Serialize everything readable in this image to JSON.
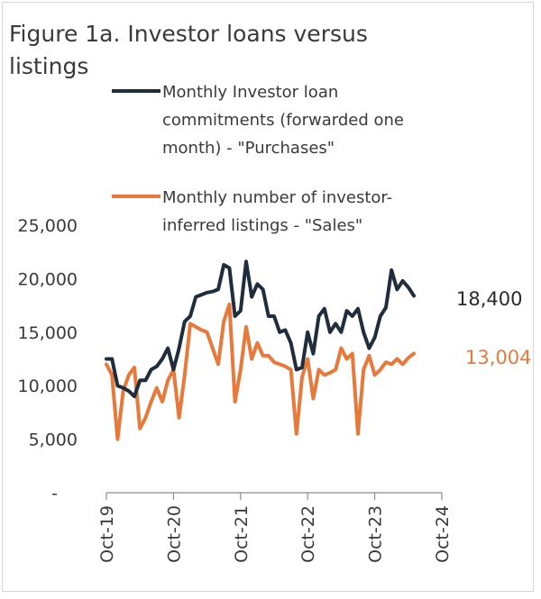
{
  "chart_data": {
    "type": "line",
    "title": "Figure 1a. Investor loans versus listings",
    "title_lines": [
      "Figure 1a. Investor loans versus",
      "listings"
    ],
    "xlabel": "",
    "ylabel": "",
    "x_tick_labels": [
      "Oct-19",
      "Oct-20",
      "Oct-21",
      "Oct-22",
      "Oct-23",
      "Oct-24"
    ],
    "y_tick_labels": [
      "25,000",
      "20,000",
      "15,000",
      "10,000",
      "5,000",
      "-"
    ],
    "ylim": [
      0,
      25000
    ],
    "grid": false,
    "legend": "top",
    "series": [
      {
        "name": "Monthly Investor loan commitments (forwarded one month) - \"Purchases\"",
        "legend_lines": [
          "Monthly Investor loan",
          "commitments (forwarded one",
          "month) - \"Purchases\""
        ],
        "color": "#1f2d3d",
        "end_label": "18,400",
        "points": [
          [
            "2019-10",
            12500
          ],
          [
            "2019-11",
            12500
          ],
          [
            "2019-12",
            10000
          ],
          [
            "2020-01",
            9800
          ],
          [
            "2020-02",
            9500
          ],
          [
            "2020-03",
            9000
          ],
          [
            "2020-04",
            10500
          ],
          [
            "2020-05",
            10500
          ],
          [
            "2020-06",
            11500
          ],
          [
            "2020-07",
            11800
          ],
          [
            "2020-08",
            12500
          ],
          [
            "2020-09",
            13500
          ],
          [
            "2020-10",
            11500
          ],
          [
            "2020-11",
            13500
          ],
          [
            "2020-12",
            16000
          ],
          [
            "2021-01",
            16500
          ],
          [
            "2021-02",
            18300
          ],
          [
            "2021-03",
            18500
          ],
          [
            "2021-04",
            18700
          ],
          [
            "2021-05",
            18800
          ],
          [
            "2021-06",
            19000
          ],
          [
            "2021-07",
            21300
          ],
          [
            "2021-08",
            21000
          ],
          [
            "2021-09",
            16500
          ],
          [
            "2021-10",
            17000
          ],
          [
            "2021-11",
            21600
          ],
          [
            "2021-12",
            18300
          ],
          [
            "2022-01",
            19500
          ],
          [
            "2022-02",
            19000
          ],
          [
            "2022-03",
            16500
          ],
          [
            "2022-04",
            16500
          ],
          [
            "2022-05",
            15000
          ],
          [
            "2022-06",
            15200
          ],
          [
            "2022-07",
            14000
          ],
          [
            "2022-08",
            11500
          ],
          [
            "2022-09",
            11700
          ],
          [
            "2022-10",
            15000
          ],
          [
            "2022-11",
            13000
          ],
          [
            "2022-12",
            16500
          ],
          [
            "2023-01",
            17200
          ],
          [
            "2023-02",
            15000
          ],
          [
            "2023-03",
            15800
          ],
          [
            "2023-04",
            15000
          ],
          [
            "2023-05",
            17000
          ],
          [
            "2023-06",
            16500
          ],
          [
            "2023-07",
            17200
          ],
          [
            "2023-08",
            15000
          ],
          [
            "2023-09",
            13500
          ],
          [
            "2023-10",
            14500
          ],
          [
            "2023-11",
            16500
          ],
          [
            "2023-12",
            17300
          ],
          [
            "2024-01",
            20800
          ],
          [
            "2024-02",
            19000
          ],
          [
            "2024-03",
            19800
          ],
          [
            "2024-04",
            19200
          ],
          [
            "2024-05",
            18400
          ]
        ]
      },
      {
        "name": "Monthly number of investor-inferred listings - \"Sales\"",
        "legend_lines": [
          "Monthly number of investor-",
          "inferred listings - \"Sales\""
        ],
        "color": "#e8793a",
        "end_label": "13,004",
        "points": [
          [
            "2019-10",
            12000
          ],
          [
            "2019-11",
            11000
          ],
          [
            "2019-12",
            5000
          ],
          [
            "2020-01",
            9500
          ],
          [
            "2020-02",
            11000
          ],
          [
            "2020-03",
            11700
          ],
          [
            "2020-04",
            6000
          ],
          [
            "2020-05",
            7000
          ],
          [
            "2020-06",
            8500
          ],
          [
            "2020-07",
            9800
          ],
          [
            "2020-08",
            8500
          ],
          [
            "2020-09",
            10500
          ],
          [
            "2020-10",
            11500
          ],
          [
            "2020-11",
            7000
          ],
          [
            "2020-12",
            11000
          ],
          [
            "2021-01",
            15800
          ],
          [
            "2021-02",
            15500
          ],
          [
            "2021-03",
            15200
          ],
          [
            "2021-04",
            15000
          ],
          [
            "2021-05",
            13500
          ],
          [
            "2021-06",
            12000
          ],
          [
            "2021-07",
            16000
          ],
          [
            "2021-08",
            17600
          ],
          [
            "2021-09",
            8500
          ],
          [
            "2021-10",
            11500
          ],
          [
            "2021-11",
            15500
          ],
          [
            "2021-12",
            12500
          ],
          [
            "2022-01",
            14000
          ],
          [
            "2022-02",
            12800
          ],
          [
            "2022-03",
            12800
          ],
          [
            "2022-04",
            12200
          ],
          [
            "2022-05",
            12000
          ],
          [
            "2022-06",
            11800
          ],
          [
            "2022-07",
            11500
          ],
          [
            "2022-08",
            5500
          ],
          [
            "2022-09",
            10800
          ],
          [
            "2022-10",
            12500
          ],
          [
            "2022-11",
            8800
          ],
          [
            "2022-12",
            11500
          ],
          [
            "2023-01",
            11000
          ],
          [
            "2023-02",
            11200
          ],
          [
            "2023-03",
            11500
          ],
          [
            "2023-04",
            13500
          ],
          [
            "2023-05",
            12500
          ],
          [
            "2023-06",
            13000
          ],
          [
            "2023-07",
            5500
          ],
          [
            "2023-08",
            11500
          ],
          [
            "2023-09",
            12800
          ],
          [
            "2023-10",
            11000
          ],
          [
            "2023-11",
            11500
          ],
          [
            "2023-12",
            12200
          ],
          [
            "2024-01",
            12000
          ],
          [
            "2024-02",
            12500
          ],
          [
            "2024-03",
            12000
          ],
          [
            "2024-04",
            12600
          ],
          [
            "2024-05",
            13004
          ]
        ]
      }
    ]
  }
}
